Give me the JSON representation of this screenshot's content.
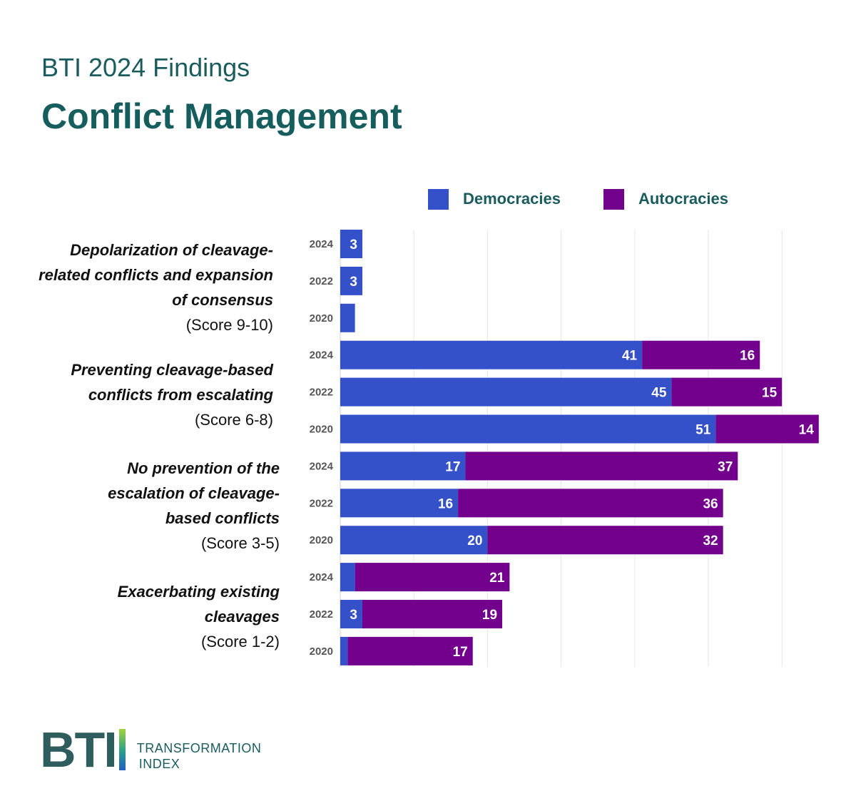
{
  "header": {
    "eyebrow": "BTI 2024 Findings",
    "title": "Conflict Management"
  },
  "logo": {
    "mark": "BTI",
    "line1": "TRANSFORMATION",
    "line2": "INDEX"
  },
  "groups": [
    {
      "label": "Depolarization of cleavage-related conflicts and expansion of consensus",
      "score": "(Score 9-10)"
    },
    {
      "label": "Preventing cleavage-based conflicts from escalating",
      "score": "(Score 6-8)"
    },
    {
      "label": "No prevention of the escalation of cleavage-based conflicts",
      "score": "(Score 3-5)"
    },
    {
      "label": "Exacerbating existing cleavages",
      "score": "(Score 1-2)"
    }
  ],
  "colors": {
    "democracies": "#3551c9",
    "autocracies": "#73008c",
    "title": "#165e5d",
    "grid": "#e6e6e6"
  },
  "chart_data": {
    "type": "bar",
    "orientation": "horizontal",
    "stacked": true,
    "legend_position": "top",
    "grid": true,
    "xlim": [
      0,
      70
    ],
    "categories": [
      "2024",
      "2022",
      "2020",
      "2024",
      "2022",
      "2020",
      "2024",
      "2022",
      "2020",
      "2024",
      "2022",
      "2020"
    ],
    "group_index": [
      0,
      0,
      0,
      1,
      1,
      1,
      2,
      2,
      2,
      3,
      3,
      3
    ],
    "series": [
      {
        "name": "Democracies",
        "color": "#3551c9",
        "values": [
          3,
          3,
          2,
          41,
          45,
          51,
          17,
          16,
          20,
          2,
          3,
          1
        ],
        "labels": [
          "3",
          "3",
          "",
          "41",
          "45",
          "51",
          "17",
          "16",
          "20",
          "",
          "3",
          ""
        ]
      },
      {
        "name": "Autocracies",
        "color": "#73008c",
        "values": [
          0,
          0,
          0,
          16,
          15,
          14,
          37,
          36,
          32,
          21,
          19,
          17
        ],
        "labels": [
          "",
          "",
          "",
          "16",
          "15",
          "14",
          "37",
          "36",
          "32",
          "21",
          "19",
          "17"
        ]
      }
    ]
  }
}
